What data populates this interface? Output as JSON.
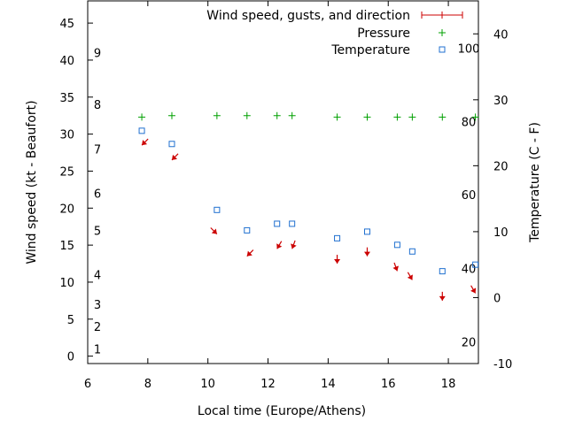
{
  "chart_data": {
    "type": "scatter",
    "xlabel": "Local time (Europe/Athens)",
    "ylabel_left": "Wind speed (kt - Beaufort)",
    "ylabel_right": "Temperature (C - F)",
    "xlim": [
      6,
      19
    ],
    "x_ticks": [
      "6",
      "8",
      "10",
      "12",
      "14",
      "16",
      "18"
    ],
    "ylim_left": [
      -1,
      48
    ],
    "y_ticks_left": [
      "0",
      "5",
      "10",
      "15",
      "20",
      "25",
      "30",
      "35",
      "40",
      "45"
    ],
    "ylim_right": [
      -10,
      45
    ],
    "y_ticks_right": [
      "-10",
      "0",
      "10",
      "20",
      "30",
      "40"
    ],
    "beaufort_labels": [
      {
        "label": "1",
        "kt": 1
      },
      {
        "label": "2",
        "kt": 4
      },
      {
        "label": "3",
        "kt": 7
      },
      {
        "label": "4",
        "kt": 11
      },
      {
        "label": "5",
        "kt": 17
      },
      {
        "label": "6",
        "kt": 22
      },
      {
        "label": "7",
        "kt": 28
      },
      {
        "label": "8",
        "kt": 34
      },
      {
        "label": "9",
        "kt": 41
      }
    ],
    "fahrenheit_labels": [
      {
        "label": "20",
        "c": -6.7
      },
      {
        "label": "40",
        "c": 4.4
      },
      {
        "label": "60",
        "c": 15.6
      },
      {
        "label": "80",
        "c": 26.7
      },
      {
        "label": "100",
        "c": 37.8
      }
    ],
    "legend_position": "top-right",
    "series": [
      {
        "name": "Wind speed, gusts, and direction",
        "color": "#cc0000",
        "marker": "arrow",
        "points": [
          {
            "x": 7.8,
            "speed": 28.5,
            "dir_deg": 45
          },
          {
            "x": 8.8,
            "speed": 26.5,
            "dir_deg": 45
          },
          {
            "x": 10.3,
            "speed": 16.5,
            "dir_deg": 315
          },
          {
            "x": 11.3,
            "speed": 13.5,
            "dir_deg": 45
          },
          {
            "x": 12.3,
            "speed": 14.5,
            "dir_deg": 30
          },
          {
            "x": 12.8,
            "speed": 14.5,
            "dir_deg": 20
          },
          {
            "x": 14.3,
            "speed": 12.5,
            "dir_deg": 0
          },
          {
            "x": 15.3,
            "speed": 13.5,
            "dir_deg": 0
          },
          {
            "x": 16.3,
            "speed": 11.5,
            "dir_deg": 340
          },
          {
            "x": 16.8,
            "speed": 10.3,
            "dir_deg": 330
          },
          {
            "x": 17.8,
            "speed": 7.5,
            "dir_deg": 0
          },
          {
            "x": 18.9,
            "speed": 8.5,
            "dir_deg": 330
          }
        ]
      },
      {
        "name": "Pressure",
        "color": "#00a000",
        "marker": "plus",
        "axis": "left",
        "points": [
          {
            "x": 7.8,
            "y": 32.3
          },
          {
            "x": 8.8,
            "y": 32.5
          },
          {
            "x": 10.3,
            "y": 32.5
          },
          {
            "x": 11.3,
            "y": 32.5
          },
          {
            "x": 12.3,
            "y": 32.5
          },
          {
            "x": 12.8,
            "y": 32.5
          },
          {
            "x": 14.3,
            "y": 32.3
          },
          {
            "x": 15.3,
            "y": 32.3
          },
          {
            "x": 16.3,
            "y": 32.3
          },
          {
            "x": 16.8,
            "y": 32.3
          },
          {
            "x": 17.8,
            "y": 32.3
          },
          {
            "x": 18.9,
            "y": 32.3
          }
        ]
      },
      {
        "name": "Temperature",
        "color": "#2070d0",
        "marker": "square",
        "axis": "right",
        "points": [
          {
            "x": 7.8,
            "y": 25.3
          },
          {
            "x": 8.8,
            "y": 23.3
          },
          {
            "x": 10.3,
            "y": 13.3
          },
          {
            "x": 11.3,
            "y": 10.2
          },
          {
            "x": 12.3,
            "y": 11.2
          },
          {
            "x": 12.8,
            "y": 11.2
          },
          {
            "x": 14.3,
            "y": 9.0
          },
          {
            "x": 15.3,
            "y": 10.0
          },
          {
            "x": 16.3,
            "y": 8.0
          },
          {
            "x": 16.8,
            "y": 7.0
          },
          {
            "x": 17.8,
            "y": 4.0
          },
          {
            "x": 18.9,
            "y": 5.0
          }
        ]
      }
    ]
  }
}
